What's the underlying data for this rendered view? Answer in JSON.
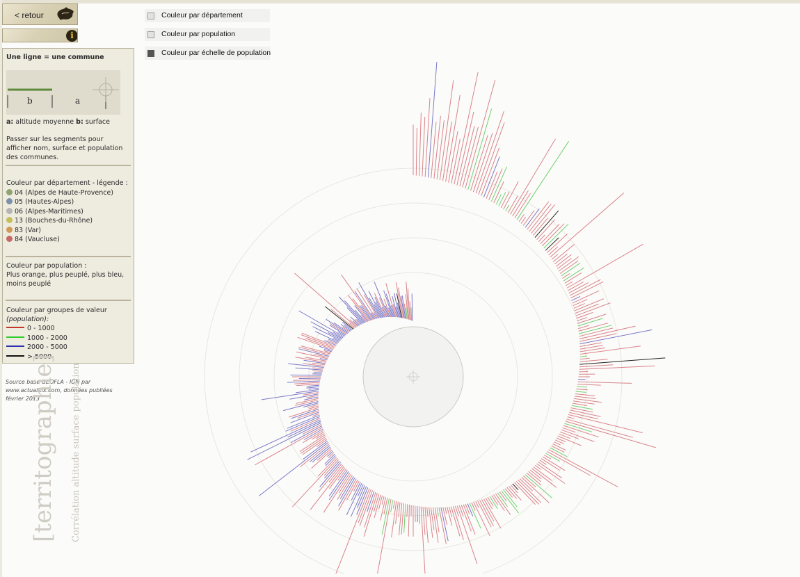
{
  "nav": {
    "back_label": "< retour",
    "info_label": "i"
  },
  "toggles": [
    {
      "label": "Couleur par département",
      "checked": false
    },
    {
      "label": "Couleur par population",
      "checked": false
    },
    {
      "label": "Couleur par échelle de population",
      "checked": true
    }
  ],
  "legend": {
    "title": "Une ligne = une commune",
    "diagram": {
      "b": "b",
      "a": "a"
    },
    "axes_line": {
      "a_key": "a:",
      "a_text": "altitude moyenne",
      "b_key": "b:",
      "b_text": "surface"
    },
    "hover_help": "Passer sur les segments pour afficher nom, surface et population des communes.",
    "departement": {
      "title": "Couleur par département - légende :",
      "items": [
        {
          "label": "04 (Alpes de Haute-Provence)",
          "color": "#8fa371"
        },
        {
          "label": "05 (Hautes-Alpes)",
          "color": "#7d92a8"
        },
        {
          "label": "06 (Alpes-Maritimes)",
          "color": "#b5b5b5"
        },
        {
          "label": "13 (Bouches-du-Rhône)",
          "color": "#c5bf5a"
        },
        {
          "label": "83 (Var)",
          "color": "#cf9b56"
        },
        {
          "label": "84 (Vaucluse)",
          "color": "#c86a6a"
        }
      ]
    },
    "population": {
      "title": "Couleur par population :",
      "text": "Plus orange, plus peuplé, plus bleu, moins peuplé"
    },
    "groupes": {
      "title": "Couleur par groupes de valeur",
      "subtitle": "(population):",
      "items": [
        {
          "label": "0 - 1000",
          "color": "#c0392b"
        },
        {
          "label": "1000 - 2000",
          "color": "#2ecc2e"
        },
        {
          "label": "2000 - 5000",
          "color": "#2b2fb0"
        },
        {
          "label": "> 5000",
          "color": "#111111"
        }
      ]
    }
  },
  "source": "Source base GEOFLA - IGN par www.actualitix.com, données publiées février 2013",
  "branding": {
    "title": "[territographie]",
    "subtitle": "Corrélation altitude surface population"
  },
  "viz_colors": {
    "red": "#d9838a",
    "green": "#6fd06f",
    "blue": "#7a78c8",
    "black": "#222222",
    "ring": "#e8e6e0"
  }
}
